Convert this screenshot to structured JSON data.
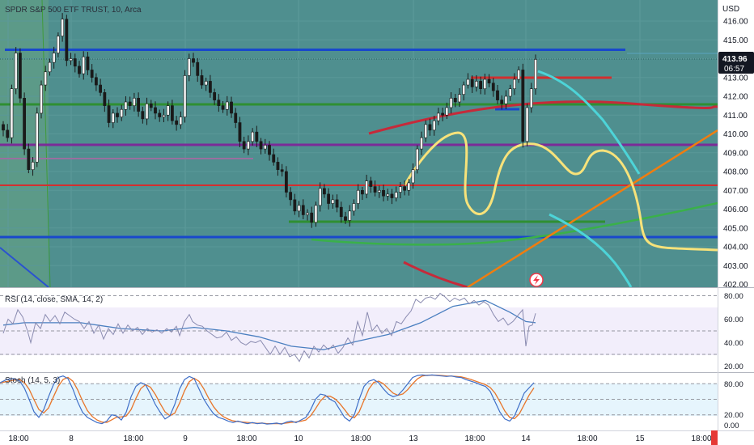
{
  "chart_data": [
    {
      "type": "candlestick",
      "title": "SPDR S&P 500 ETF TRUST, 10, Arca",
      "currency": "USD",
      "last_price": "413.96",
      "countdown": "06:57",
      "ylim": [
        401.7,
        416.8
      ],
      "y_ticks": [
        "416.00",
        "415.00",
        "414.00",
        "413.00",
        "412.00",
        "411.00",
        "410.00",
        "409.00",
        "408.00",
        "407.00",
        "406.00",
        "405.00",
        "404.00",
        "403.00",
        "402.00"
      ],
      "x_ticks": [
        "18:00",
        "8",
        "18:00",
        "9",
        "18:00",
        "10",
        "18:00",
        "13",
        "18:00",
        "14",
        "18:00",
        "15",
        "18:00"
      ],
      "close": [
        410.2,
        409.8,
        412.4,
        414.3,
        411.9,
        409.2,
        408.1,
        408.5,
        411.1,
        412.6,
        413.3,
        413.8,
        414.3,
        415.2,
        416.1,
        413.9,
        414.0,
        413.6,
        413.2,
        414.1,
        413.4,
        413.0,
        412.6,
        412.2,
        411.5,
        410.6,
        411.1,
        410.9,
        411.3,
        411.7,
        411.5,
        411.9,
        411.2,
        410.8,
        411.6,
        411.4,
        411.1,
        410.9,
        411.0,
        411.5,
        410.7,
        410.5,
        410.9,
        413.1,
        414.0,
        413.8,
        413.1,
        412.6,
        412.8,
        412.2,
        411.8,
        411.5,
        411.3,
        411.7,
        411.1,
        410.6,
        409.6,
        409.2,
        409.6,
        410.1,
        409.6,
        409.2,
        409.4,
        408.9,
        408.5,
        408.1,
        408.0,
        406.9,
        406.5,
        405.9,
        406.2,
        405.7,
        405.8,
        405.3,
        406.2,
        407.1,
        406.8,
        406.3,
        406.5,
        406.1,
        405.6,
        405.4,
        405.9,
        406.3,
        407.0,
        406.8,
        407.5,
        407.2,
        406.9,
        407.0,
        406.7,
        406.8,
        406.6,
        406.9,
        407.2,
        407.0,
        407.4,
        408.1,
        409.2,
        409.8,
        410.5,
        410.2,
        410.7,
        411.1,
        411.0,
        411.4,
        411.9,
        411.7,
        412.1,
        412.6,
        412.9,
        412.5,
        412.8,
        412.4,
        412.9,
        412.7,
        412.3,
        411.8,
        411.6,
        412.0,
        412.4,
        412.9,
        413.4,
        409.6,
        411.4,
        412.4,
        413.96
      ],
      "overlay_lines": {
        "blue": [
          414.6,
          404.45
        ],
        "green": [
          411.5,
          405.1
        ],
        "purple": 409.35,
        "red": 407.1,
        "short_red": 413.0
      },
      "indicators": [
        {
          "label": "RSI (14, close, SMA, 14, 2)",
          "ticks": [
            "80.00",
            "60.00",
            "40.00",
            "20.00"
          ],
          "band": [
            30,
            70
          ]
        },
        {
          "label": "Stoch (14, 5, 3)",
          "ticks": [
            "80.00",
            "20.00",
            "0.00"
          ],
          "band": [
            20,
            80
          ]
        }
      ]
    }
  ],
  "colors": {
    "main_bg": "#4f8f8f",
    "rsi_bg": "#f2eefb",
    "stoch_bg": "#e6f5fd",
    "candle": "#1a1a1a",
    "price_tag": "#131722",
    "blue": "#1848cc",
    "green": "#2f8f32",
    "purple": "#7b2b98",
    "red": "#d32f2f",
    "yellow": "#f7e27a",
    "cyan": "#4dd4d8",
    "orange": "#f07d0f",
    "rsi_line": "#8a8bb0",
    "rsi_ma": "#4a7fc0",
    "stoch_k": "#3f6fc8",
    "stoch_d": "#e8752a"
  },
  "icons": {
    "replay": "lightning-bolt-icon"
  }
}
